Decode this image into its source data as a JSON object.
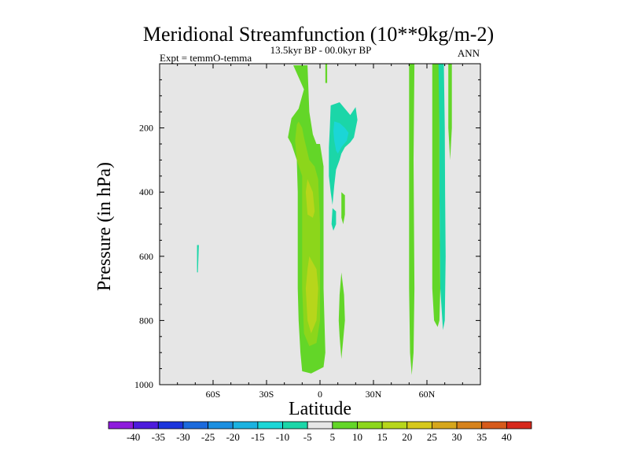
{
  "chart_data": {
    "type": "heatmap",
    "title": "Meridional Streamfunction (10**9kg/m-2)",
    "subtitle_left": "Expt = temmO-temma",
    "subtitle_center": "13.5kyr BP - 00.0kyr BP",
    "subtitle_right": "ANN",
    "xlabel": "Latitude",
    "ylabel": "Pressure (in hPa)",
    "xlim": [
      -90,
      90
    ],
    "ylim": [
      0,
      1000
    ],
    "y_inverted": true,
    "xticks": [
      -60,
      -30,
      0,
      30,
      60
    ],
    "xtick_labels": [
      "60S",
      "30S",
      "0",
      "30N",
      "60N"
    ],
    "yticks": [
      200,
      400,
      600,
      800,
      1000
    ],
    "ytick_labels": [
      "200",
      "400",
      "600",
      "800",
      "1000"
    ],
    "colorbar": {
      "levels": [
        "-40",
        "-35",
        "-30",
        "-25",
        "-20",
        "-15",
        "-10",
        "-5",
        "5",
        "10",
        "15",
        "20",
        "25",
        "30",
        "35",
        "40"
      ],
      "colors": [
        "#8e1bdc",
        "#4d1bdc",
        "#1b35dc",
        "#1b6adc",
        "#1b8fe0",
        "#1bb2e0",
        "#1bd6d6",
        "#1bd6a8",
        "#e6e6e6",
        "#63d628",
        "#8cd61b",
        "#b7d61b",
        "#d6c81b",
        "#d6a61b",
        "#d6821b",
        "#d65a1b",
        "#d6281b"
      ]
    },
    "regions": [
      {
        "name": "sh-positive-outer",
        "color": "#63d628",
        "points": [
          [
            -15,
            5
          ],
          [
            -7,
            5
          ],
          [
            -6,
            150
          ],
          [
            -4,
            220
          ],
          [
            -2,
            250
          ],
          [
            0,
            250
          ],
          [
            2,
            320
          ],
          [
            2,
            700
          ],
          [
            3,
            900
          ],
          [
            2,
            945
          ],
          [
            -5,
            965
          ],
          [
            -10,
            958
          ],
          [
            -11,
            900
          ],
          [
            -12,
            800
          ],
          [
            -12.5,
            700
          ],
          [
            -12.5,
            600
          ],
          [
            -12.5,
            500
          ],
          [
            -12.5,
            400
          ],
          [
            -13,
            300
          ],
          [
            -16,
            250
          ],
          [
            -18,
            230
          ],
          [
            -16,
            170
          ],
          [
            -12,
            140
          ],
          [
            -10,
            100
          ],
          [
            -9,
            80
          ]
        ]
      },
      {
        "name": "sh-positive-10",
        "color": "#8cd61b",
        "points": [
          [
            -12,
            180
          ],
          [
            -10,
            200
          ],
          [
            -9,
            230
          ],
          [
            -6,
            300
          ],
          [
            -3,
            320
          ],
          [
            -1,
            360
          ],
          [
            0,
            500
          ],
          [
            0,
            800
          ],
          [
            -2,
            870
          ],
          [
            -6,
            880
          ],
          [
            -9,
            840
          ],
          [
            -10,
            700
          ],
          [
            -10,
            500
          ],
          [
            -10,
            350
          ],
          [
            -13,
            300
          ],
          [
            -14,
            240
          ],
          [
            -13,
            190
          ]
        ]
      },
      {
        "name": "sh-positive-15-upper",
        "color": "#b7d61b",
        "points": [
          [
            -7,
            360
          ],
          [
            -4,
            400
          ],
          [
            -3,
            460
          ],
          [
            -4,
            480
          ],
          [
            -7,
            470
          ],
          [
            -8,
            400
          ]
        ]
      },
      {
        "name": "sh-positive-15-lower",
        "color": "#b7d61b",
        "points": [
          [
            -6,
            600
          ],
          [
            -2,
            640
          ],
          [
            -1,
            700
          ],
          [
            -2,
            800
          ],
          [
            -5,
            840
          ],
          [
            -7,
            800
          ],
          [
            -8,
            700
          ],
          [
            -7,
            640
          ]
        ]
      },
      {
        "name": "equator-thin-positive",
        "color": "#63d628",
        "points": [
          [
            3,
            0
          ],
          [
            4,
            0
          ],
          [
            4,
            60
          ],
          [
            3,
            60
          ]
        ]
      },
      {
        "name": "mid-positive-streak",
        "color": "#63d628",
        "points": [
          [
            11,
            850
          ],
          [
            12,
            920
          ],
          [
            13,
            860
          ],
          [
            14,
            800
          ],
          [
            13.5,
            720
          ],
          [
            12,
            650
          ],
          [
            11,
            720
          ],
          [
            10.5,
            800
          ]
        ]
      },
      {
        "name": "mid-positive-streak-upper",
        "color": "#63d628",
        "points": [
          [
            12,
            400
          ],
          [
            14,
            410
          ],
          [
            14,
            470
          ],
          [
            13,
            500
          ],
          [
            12,
            480
          ]
        ]
      },
      {
        "name": "nh-positive-band-1",
        "color": "#63d628",
        "points": [
          [
            50,
            0
          ],
          [
            53,
            0
          ],
          [
            52.5,
            300
          ],
          [
            53,
            700
          ],
          [
            52.5,
            900
          ],
          [
            51.5,
            970
          ],
          [
            50.5,
            900
          ],
          [
            50,
            700
          ],
          [
            50,
            300
          ]
        ]
      },
      {
        "name": "nh-positive-band-2",
        "color": "#63d628",
        "points": [
          [
            63,
            0
          ],
          [
            67,
            0
          ],
          [
            67,
            400
          ],
          [
            67.5,
            700
          ],
          [
            67,
            800
          ],
          [
            66,
            820
          ],
          [
            64,
            800
          ],
          [
            63,
            700
          ],
          [
            63,
            400
          ]
        ]
      },
      {
        "name": "nh-positive-band-3",
        "color": "#63d628",
        "points": [
          [
            72,
            0
          ],
          [
            74,
            0
          ],
          [
            74,
            200
          ],
          [
            73,
            300
          ],
          [
            72,
            200
          ]
        ]
      },
      {
        "name": "nh-negative-band",
        "color": "#1bd6a8",
        "points": [
          [
            66.5,
            0
          ],
          [
            69.5,
            0
          ],
          [
            70,
            200
          ],
          [
            70.2,
            400
          ],
          [
            70.5,
            600
          ],
          [
            70,
            800
          ],
          [
            69,
            830
          ],
          [
            67.5,
            700
          ],
          [
            67,
            400
          ],
          [
            67,
            200
          ]
        ]
      },
      {
        "name": "tropical-negative-outer",
        "color": "#1bd6a8",
        "points": [
          [
            6,
            130
          ],
          [
            11,
            120
          ],
          [
            14,
            140
          ],
          [
            17,
            160
          ],
          [
            20,
            135
          ],
          [
            21,
            175
          ],
          [
            19,
            230
          ],
          [
            17,
            245
          ],
          [
            14,
            260
          ],
          [
            12,
            280
          ],
          [
            11,
            300
          ],
          [
            9,
            330
          ],
          [
            8,
            380
          ],
          [
            7,
            440
          ],
          [
            6,
            400
          ],
          [
            5,
            350
          ],
          [
            5,
            260
          ],
          [
            5.5,
            200
          ]
        ]
      },
      {
        "name": "tropical-negative-inner",
        "color": "#1bd6d6",
        "points": [
          [
            8,
            180
          ],
          [
            11,
            185
          ],
          [
            14,
            200
          ],
          [
            16,
            215
          ],
          [
            15,
            240
          ],
          [
            12,
            260
          ],
          [
            10,
            280
          ],
          [
            9,
            270
          ],
          [
            8,
            240
          ],
          [
            7.5,
            210
          ]
        ]
      },
      {
        "name": "tropical-negative-lower-strip",
        "color": "#1bd6a8",
        "points": [
          [
            7,
            450
          ],
          [
            9,
            460
          ],
          [
            9,
            500
          ],
          [
            7.5,
            520
          ],
          [
            6.5,
            500
          ]
        ]
      },
      {
        "name": "sh-negative-small",
        "color": "#1bd6a8",
        "points": [
          [
            -69,
            565
          ],
          [
            -68,
            565
          ],
          [
            -68.5,
            650
          ],
          [
            -69,
            650
          ]
        ]
      }
    ]
  }
}
